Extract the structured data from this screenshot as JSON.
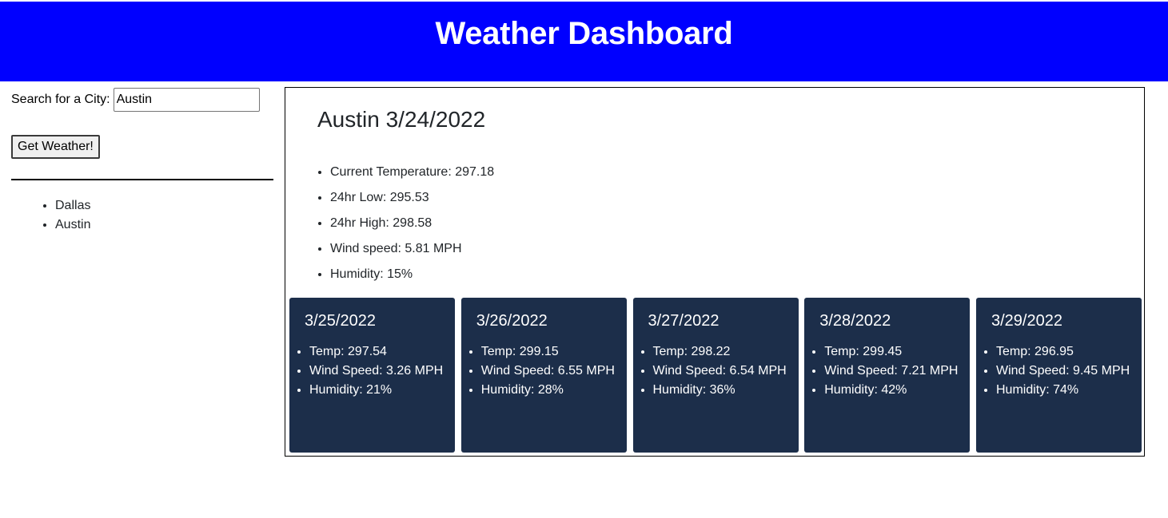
{
  "header": {
    "title": "Weather Dashboard",
    "bg_color": "#0000ff"
  },
  "search": {
    "label": "Search for a City:",
    "value": "Austin",
    "button_label": "Get Weather!"
  },
  "history": [
    "Dallas",
    "Austin"
  ],
  "current": {
    "title": "Austin 3/24/2022",
    "temperature": "Current Temperature: 297.18",
    "low": "24hr Low: 295.53",
    "high": "24hr High: 298.58",
    "wind": "Wind speed: 5.81 MPH",
    "humidity": "Humidity: 15%"
  },
  "forecast": [
    {
      "date": "3/25/2022",
      "temp": "Temp: 297.54",
      "wind": "Wind Speed: 3.26 MPH",
      "humidity": "Humidity: 21%"
    },
    {
      "date": "3/26/2022",
      "temp": "Temp: 299.15",
      "wind": "Wind Speed: 6.55 MPH",
      "humidity": "Humidity: 28%"
    },
    {
      "date": "3/27/2022",
      "temp": "Temp: 298.22",
      "wind": "Wind Speed: 6.54 MPH",
      "humidity": "Humidity: 36%"
    },
    {
      "date": "3/28/2022",
      "temp": "Temp: 299.45",
      "wind": "Wind Speed: 7.21 MPH",
      "humidity": "Humidity: 42%"
    },
    {
      "date": "3/29/2022",
      "temp": "Temp: 296.95",
      "wind": "Wind Speed: 9.45 MPH",
      "humidity": "Humidity: 74%"
    }
  ],
  "colors": {
    "card_bg": "#1c2e4a"
  }
}
